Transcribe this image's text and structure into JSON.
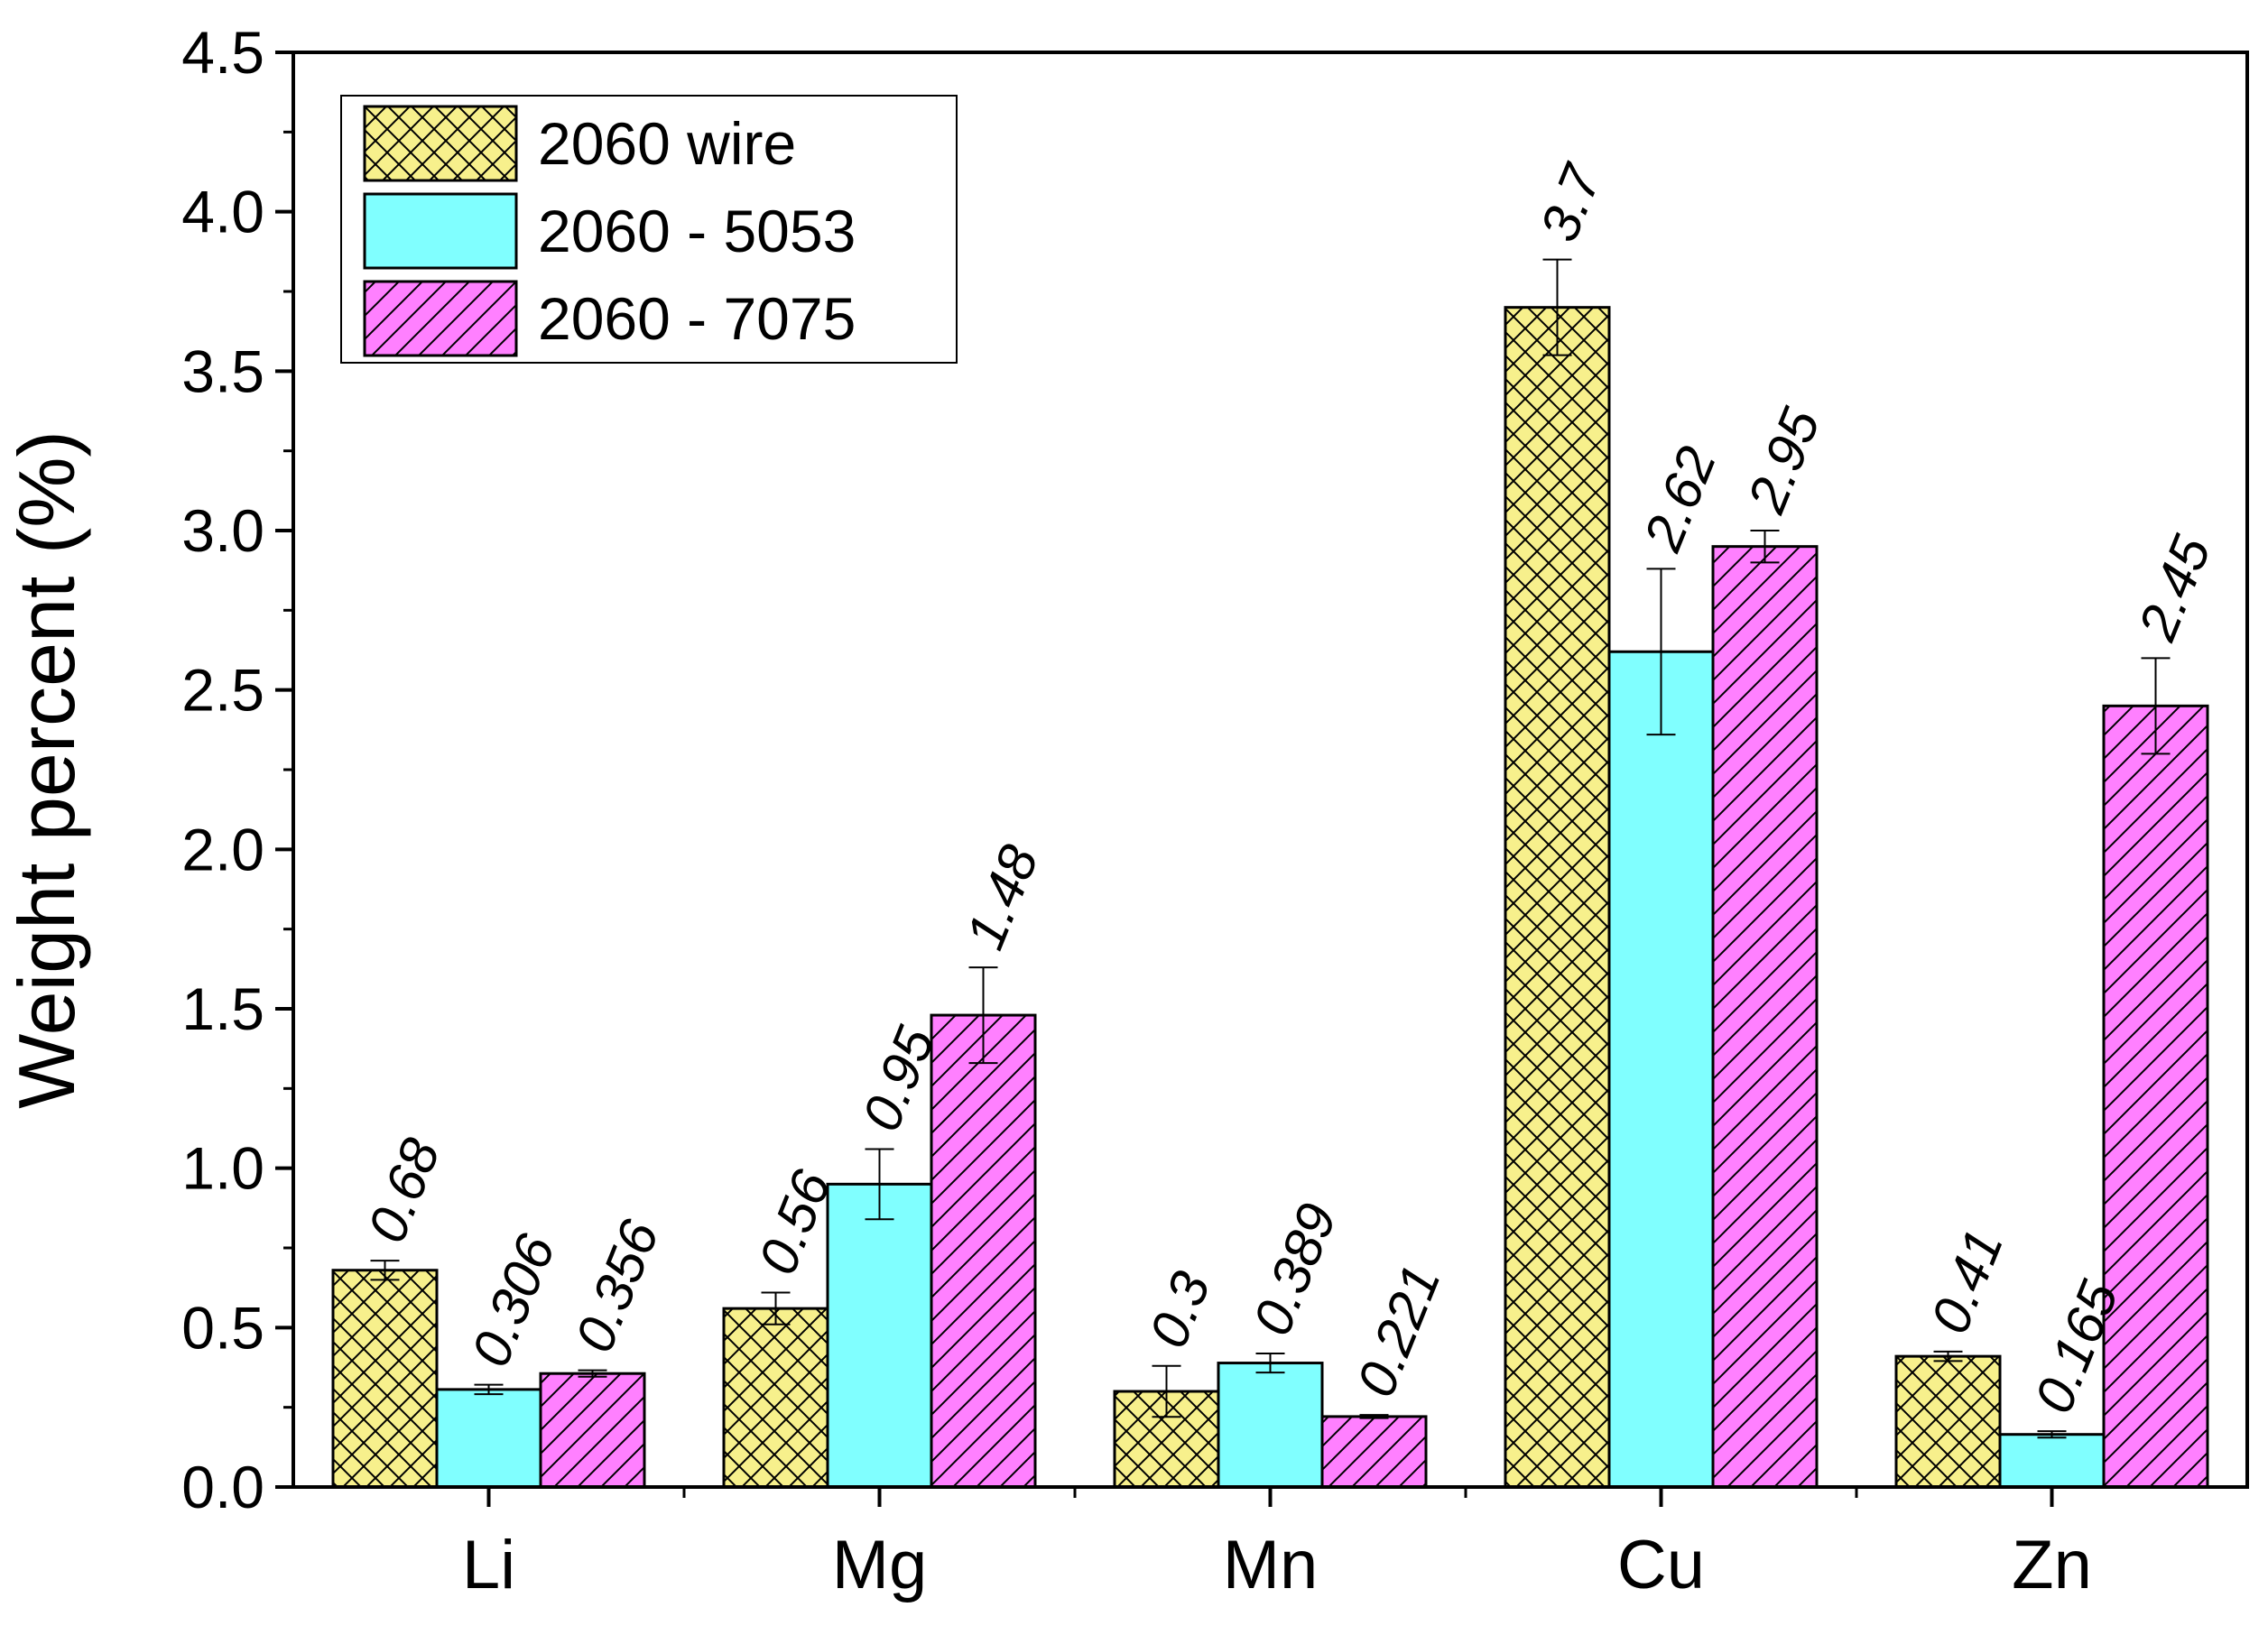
{
  "chart_data": {
    "type": "bar",
    "title": "",
    "xlabel": "",
    "ylabel": "Weight percent (%)",
    "ylim": [
      0,
      4.5
    ],
    "yticks": [
      "0.0",
      "0.5",
      "1.0",
      "1.5",
      "2.0",
      "2.5",
      "3.0",
      "3.5",
      "4.0",
      "4.5"
    ],
    "categories": [
      "Li",
      "Mg",
      "Mn",
      "Cu",
      "Zn"
    ],
    "legend_position": "top-left",
    "series": [
      {
        "name": "2060 wire",
        "color": "#f7f08c",
        "pattern": "crosshatch",
        "values": [
          0.68,
          0.56,
          0.3,
          3.7,
          0.41
        ],
        "labels": [
          "0.68",
          "0.56",
          "0.3",
          "3.7",
          "0.41"
        ],
        "errors": [
          0.03,
          0.05,
          0.08,
          0.15,
          0.015
        ]
      },
      {
        "name": "2060 - 5053",
        "color": "#80ffff",
        "pattern": "solid",
        "values": [
          0.306,
          0.95,
          0.389,
          2.62,
          0.165
        ],
        "labels": [
          "0.306",
          "0.95",
          "0.389",
          "2.62",
          "0.165"
        ],
        "errors": [
          0.015,
          0.11,
          0.03,
          0.26,
          0.01
        ]
      },
      {
        "name": "2060 - 7075",
        "color": "#ff80ff",
        "pattern": "diagonal",
        "values": [
          0.356,
          1.48,
          0.221,
          2.95,
          2.45
        ],
        "labels": [
          "0.356",
          "1.48",
          "0.221",
          "2.95",
          "2.45"
        ],
        "errors": [
          0.01,
          0.15,
          0.005,
          0.05,
          0.15
        ]
      }
    ]
  }
}
